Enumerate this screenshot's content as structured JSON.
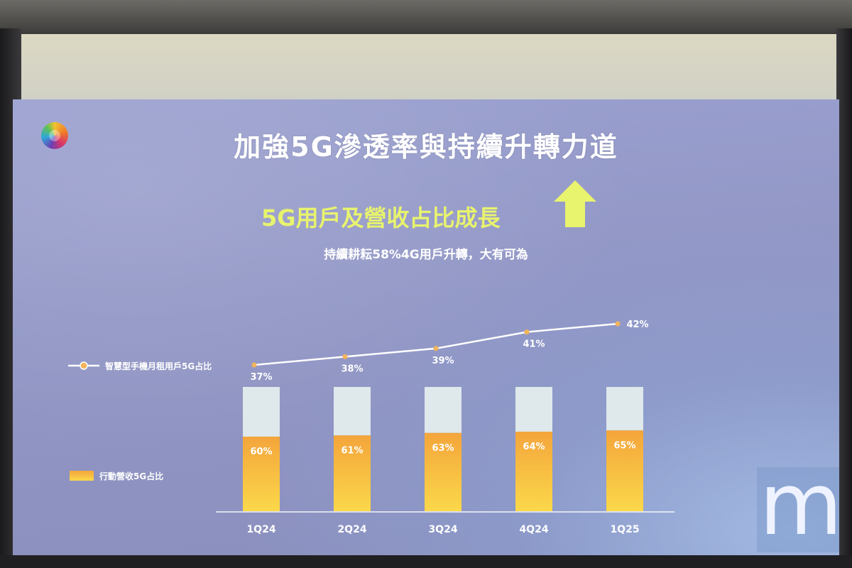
{
  "slide": {
    "title": "加強5G滲透率與持續升轉力道",
    "subtitle": "5G用戶及營收占比成長",
    "caption": "持續耕耘58%4G用戶升轉，大有可為",
    "arrow_icon": "up-arrow-icon",
    "accent_color": "#e8f36e",
    "watermark": "m"
  },
  "chart_data": {
    "type": "bar",
    "categories": [
      "1Q24",
      "2Q24",
      "3Q24",
      "4Q24",
      "1Q25"
    ],
    "series": [
      {
        "name": "行動營收5G占比",
        "type": "bar",
        "values": [
          60,
          61,
          63,
          64,
          65
        ],
        "labels": [
          "60%",
          "61%",
          "63%",
          "64%",
          "65%"
        ],
        "color": "#f5a93a"
      },
      {
        "name": "智慧型手機月租用戶5G占比",
        "type": "line",
        "values": [
          37,
          38,
          39,
          41,
          42
        ],
        "labels": [
          "37%",
          "38%",
          "39%",
          "41%",
          "42%"
        ],
        "color": "#ffffff",
        "marker_color": "#f4b45a"
      }
    ],
    "bar_ylim": [
      0,
      100
    ],
    "bar_remainder_color": "#dfe8ea",
    "grid": false,
    "legend": "left"
  }
}
